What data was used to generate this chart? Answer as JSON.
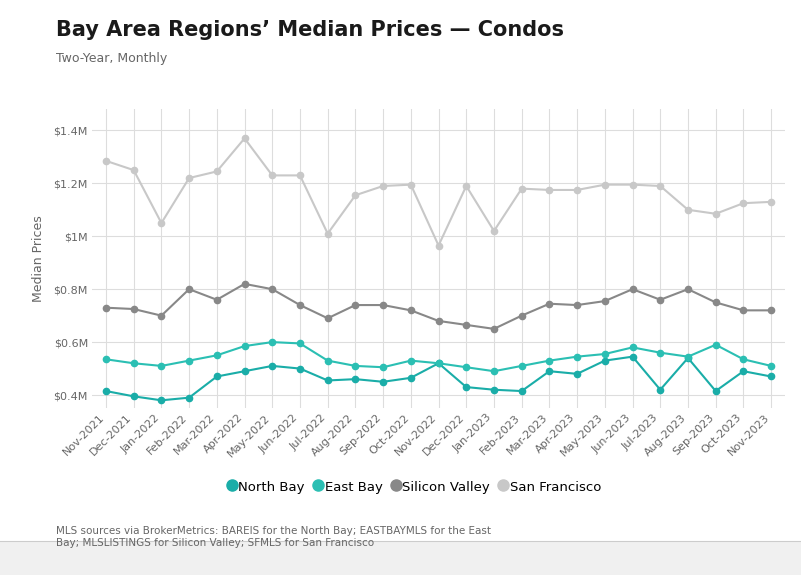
{
  "title": "Bay Area Regions’ Median Prices — Condos",
  "subtitle": "Two-Year, Monthly",
  "ylabel": "Median Prices",
  "footnote": "MLS sources via BrokerMetrics: BAREIS for the North Bay; EASTBAYMLS for the East\nBay; MLSLISTINGS for Silicon Valley; SFMLS for San Francisco",
  "x_labels": [
    "Nov-2021",
    "Dec-2021",
    "Jan-2022",
    "Feb-2022",
    "Mar-2022",
    "Apr-2022",
    "May-2022",
    "Jun-2022",
    "Jul-2022",
    "Aug-2022",
    "Sep-2022",
    "Oct-2022",
    "Nov-2022",
    "Dec-2022",
    "Jan-2023",
    "Feb-2023",
    "Mar-2023",
    "Apr-2023",
    "May-2023",
    "Jun-2023",
    "Jul-2023",
    "Aug-2023",
    "Sep-2023",
    "Oct-2023",
    "Nov-2023"
  ],
  "series": {
    "North Bay": {
      "color": "#1aada8",
      "marker": "o",
      "linewidth": 1.5,
      "markersize": 4.5,
      "values": [
        415000,
        395000,
        380000,
        390000,
        470000,
        490000,
        510000,
        500000,
        455000,
        460000,
        450000,
        465000,
        520000,
        430000,
        420000,
        415000,
        490000,
        480000,
        530000,
        545000,
        420000,
        540000,
        415000,
        490000,
        470000
      ]
    },
    "East Bay": {
      "color": "#2bbfb3",
      "marker": "o",
      "linewidth": 1.5,
      "markersize": 4.5,
      "values": [
        535000,
        520000,
        510000,
        530000,
        550000,
        585000,
        600000,
        595000,
        530000,
        510000,
        505000,
        530000,
        520000,
        505000,
        490000,
        510000,
        530000,
        545000,
        555000,
        580000,
        560000,
        545000,
        590000,
        535000,
        510000
      ]
    },
    "Silicon Valley": {
      "color": "#888888",
      "marker": "o",
      "linewidth": 1.5,
      "markersize": 4.5,
      "values": [
        730000,
        725000,
        700000,
        800000,
        760000,
        820000,
        800000,
        740000,
        690000,
        740000,
        740000,
        720000,
        680000,
        665000,
        650000,
        700000,
        745000,
        740000,
        755000,
        800000,
        760000,
        800000,
        750000,
        720000,
        720000
      ]
    },
    "San Francisco": {
      "color": "#c8c8c8",
      "marker": "o",
      "linewidth": 1.5,
      "markersize": 4.5,
      "values": [
        1285000,
        1250000,
        1050000,
        1220000,
        1245000,
        1370000,
        1230000,
        1230000,
        1010000,
        1155000,
        1190000,
        1195000,
        965000,
        1190000,
        1020000,
        1180000,
        1175000,
        1175000,
        1195000,
        1195000,
        1190000,
        1100000,
        1085000,
        1125000,
        1130000
      ]
    }
  },
  "ylim": [
    350000,
    1480000
  ],
  "yticks": [
    400000,
    600000,
    800000,
    1000000,
    1200000,
    1400000
  ],
  "ytick_labels": [
    "$0.4M",
    "$0.6M",
    "$0.8M",
    "$1M",
    "$1.2M",
    "$1.4M"
  ],
  "background_color": "#ffffff",
  "outer_background": "#f0f0f0",
  "grid_color": "#dddddd",
  "legend_order": [
    "North Bay",
    "East Bay",
    "Silicon Valley",
    "San Francisco"
  ],
  "title_fontsize": 15,
  "subtitle_fontsize": 9,
  "tick_fontsize": 8,
  "ylabel_fontsize": 9,
  "footnote_fontsize": 7.5,
  "legend_fontsize": 9.5
}
